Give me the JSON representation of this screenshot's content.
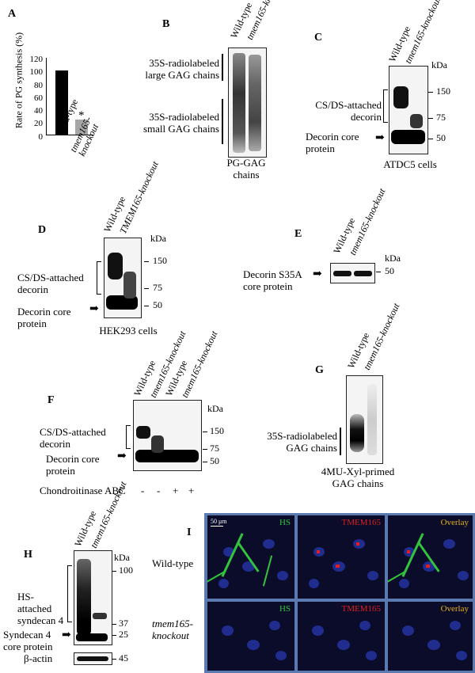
{
  "panels": {
    "A": {
      "label": "A",
      "ylabel": "Rate of PG synthesis (%)",
      "ticks": [
        "120",
        "100",
        "80",
        "60",
        "40",
        "20",
        "0"
      ],
      "bars": [
        {
          "label": "Wild-type",
          "value": 100,
          "color": "#000000"
        },
        {
          "label": "tmem165-knockout",
          "value": 23,
          "color": "#a6a6a6"
        }
      ],
      "asterisk": "*"
    },
    "B": {
      "label": "B",
      "lanes": [
        "Wild-type",
        "tmem165-knockout"
      ],
      "large_label": "35S-radiolabeled large GAG chains",
      "small_label": "35S-radiolabeled small GAG chains",
      "caption": "PG-GAG chains"
    },
    "C": {
      "label": "C",
      "lanes": [
        "Wild-type",
        "tmem165-knockout"
      ],
      "kda": "kDa",
      "markers": [
        "150",
        "75",
        "50"
      ],
      "band1": "CS/DS-attached decorin",
      "band2": "Decorin core protein",
      "caption": "ATDC5 cells"
    },
    "D": {
      "label": "D",
      "lanes": [
        "Wild-type",
        "TMEM165-knockout"
      ],
      "kda": "kDa",
      "markers": [
        "150",
        "75",
        "50"
      ],
      "band1": "CS/DS-attached decorin",
      "band2": "Decorin core protein",
      "caption": "HEK293 cells"
    },
    "E": {
      "label": "E",
      "lanes": [
        "Wild-type",
        "tmem165-knockout"
      ],
      "kda": "kDa",
      "markers": [
        "50"
      ],
      "band": "Decorin S35A core protein"
    },
    "F": {
      "label": "F",
      "lanes": [
        "Wild-type",
        "tmem165-knockout",
        "Wild-type",
        "tmem165-knockout"
      ],
      "kda": "kDa",
      "markers": [
        "150",
        "75",
        "50"
      ],
      "band1": "CS/DS-attached decorin",
      "band2": "Decorin core protein",
      "treatment": "Chondroitinase ABC",
      "treatment_signs": [
        "-",
        "-",
        "+",
        "+"
      ]
    },
    "G": {
      "label": "G",
      "lanes": [
        "Wild-type",
        "tmem165-knockout"
      ],
      "band": "35S-radiolabeled GAG chains",
      "caption": "4MU-Xyl-primed GAG chains"
    },
    "H": {
      "label": "H",
      "lanes": [
        "Wild-type",
        "tmem165-knockout"
      ],
      "kda": "kDa",
      "markers": [
        "100",
        "37",
        "25",
        "45"
      ],
      "band1": "HS-attached syndecan 4",
      "band2": "Syndecan 4 core protein",
      "loading": "β-actin"
    },
    "I": {
      "label": "I",
      "rows": [
        "Wild-type",
        "tmem165-knockout"
      ],
      "channels": [
        {
          "name": "HS",
          "color": "#33c33c"
        },
        {
          "name": "TMEM165",
          "color": "#e21e1e"
        },
        {
          "name": "Overlay",
          "color": "#e8b018"
        }
      ],
      "scalebar": "50 μm"
    }
  }
}
